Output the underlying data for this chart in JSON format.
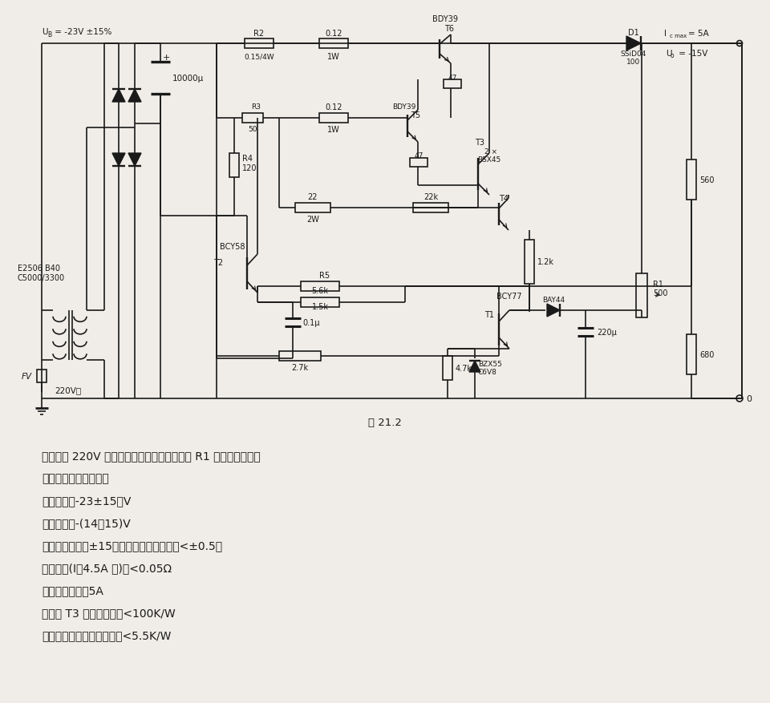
{
  "bg_color": "#f0ede8",
  "line_color": "#1a1a1a",
  "fig_caption": "图 21.2",
  "text_lines": [
    "该装置由 220V 电网供电。输出电压由电位器 R1 调节至给定值。",
    "电路的主要技术数据：",
    "工作电压：-23±15％V",
    "输出电压：-(14～15)V",
    "在工作电压变化±15％时输出电压变化率：<±0.5％",
    "输出电阻(I＝4.5A 时)：<0.05Ω",
    "最大输出电流：5A",
    "晶体管 T3 散热器热阻：<100K/W",
    "各功率晶体管散热器热阻：<5.5K/W"
  ]
}
